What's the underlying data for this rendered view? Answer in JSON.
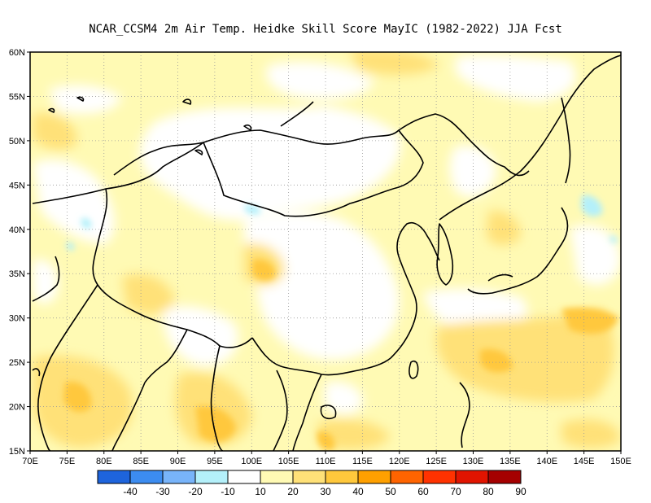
{
  "title": "NCAR_CCSM4  2m Air Temp. Heidke Skill Score MayIC (1982-2022) JJA Fcst",
  "map": {
    "lon_range": [
      70,
      150
    ],
    "lat_range": [
      15,
      60
    ],
    "lon_ticks": [
      "70E",
      "75E",
      "80E",
      "85E",
      "90E",
      "95E",
      "100E",
      "105E",
      "110E",
      "115E",
      "120E",
      "125E",
      "130E",
      "135E",
      "140E",
      "145E",
      "150E"
    ],
    "lat_ticks": [
      "15N",
      "20N",
      "25N",
      "30N",
      "35N",
      "40N",
      "45N",
      "50N",
      "55N",
      "60N"
    ]
  },
  "colorbar": {
    "colors": [
      "#1e64dc",
      "#3c8cf0",
      "#78b4fa",
      "#b4f0fa",
      "#ffffff",
      "#fffab4",
      "#ffe178",
      "#ffc83c",
      "#ffa000",
      "#ff6400",
      "#ff3200",
      "#e11400",
      "#a50000"
    ],
    "labels": [
      "-40",
      "-30",
      "-20",
      "-10",
      "10",
      "20",
      "30",
      "40",
      "50",
      "60",
      "70",
      "80",
      "90"
    ]
  }
}
